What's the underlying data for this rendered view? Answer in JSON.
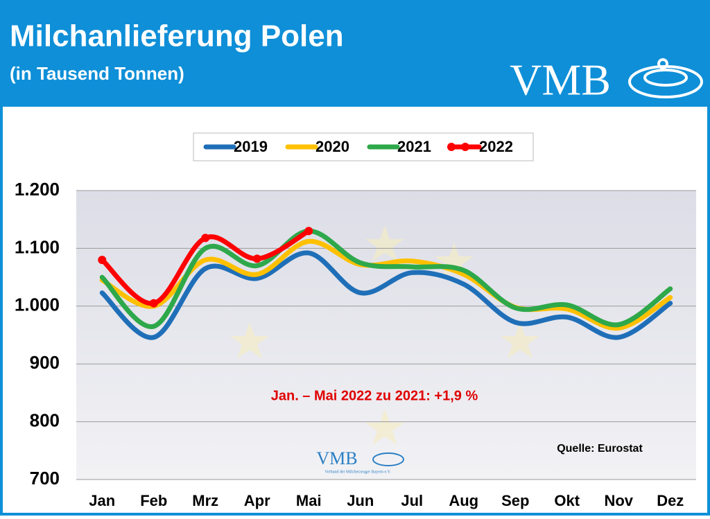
{
  "chart_data": {
    "type": "line",
    "title": "Milchanlieferung Polen",
    "subtitle": "(in Tausend Tonnen)",
    "logo": "VMB",
    "watermark": [
      "VMB",
      "Verband der Milcherzeuger Bayern e.V."
    ],
    "annotation": "Jan. – Mai 2022 zu 2021: +1,9 %",
    "source": "Quelle: Eurostat",
    "categories": [
      "Jan",
      "Feb",
      "Mrz",
      "Apr",
      "Mai",
      "Jun",
      "Jul",
      "Aug",
      "Sep",
      "Okt",
      "Nov",
      "Dez"
    ],
    "series": [
      {
        "name": "2019",
        "color": "#1f6fb8",
        "values": [
          1023,
          946,
          1065,
          1048,
          1092,
          1023,
          1058,
          1038,
          972,
          981,
          946,
          1005
        ]
      },
      {
        "name": "2020",
        "color": "#ffc000",
        "values": [
          1045,
          1000,
          1080,
          1055,
          1112,
          1072,
          1078,
          1055,
          998,
          995,
          962,
          1015
        ]
      },
      {
        "name": "2021",
        "color": "#2ea84a",
        "values": [
          1050,
          965,
          1100,
          1070,
          1130,
          1075,
          1068,
          1062,
          997,
          1002,
          968,
          1030
        ]
      },
      {
        "name": "2022",
        "color": "#ff0000",
        "markers": true,
        "values": [
          1080,
          1005,
          1118,
          1082,
          1130,
          null,
          null,
          null,
          null,
          null,
          null,
          null
        ]
      }
    ],
    "ylim": [
      700,
      1200
    ],
    "yticks": [
      700,
      800,
      900,
      {
        "value": 1000,
        "label": "1.000"
      },
      {
        "value": 1100,
        "label": "1.100"
      },
      {
        "value": 1200,
        "label": "1.200"
      }
    ],
    "grid": true,
    "legend": "top"
  }
}
